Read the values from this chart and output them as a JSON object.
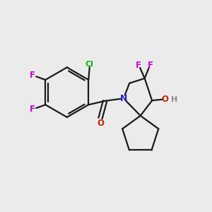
{
  "bg_color": "#ebebeb",
  "bond_color": "#1a1a1a",
  "atom_colors": {
    "Cl": "#00bb00",
    "F": "#cc00cc",
    "N": "#2222cc",
    "O_carbonyl": "#cc2200",
    "O_hydroxy": "#cc2200",
    "H": "#888888"
  },
  "figsize": [
    3.0,
    3.0
  ],
  "dpi": 100,
  "lw": 1.6,
  "fs": 8.5
}
